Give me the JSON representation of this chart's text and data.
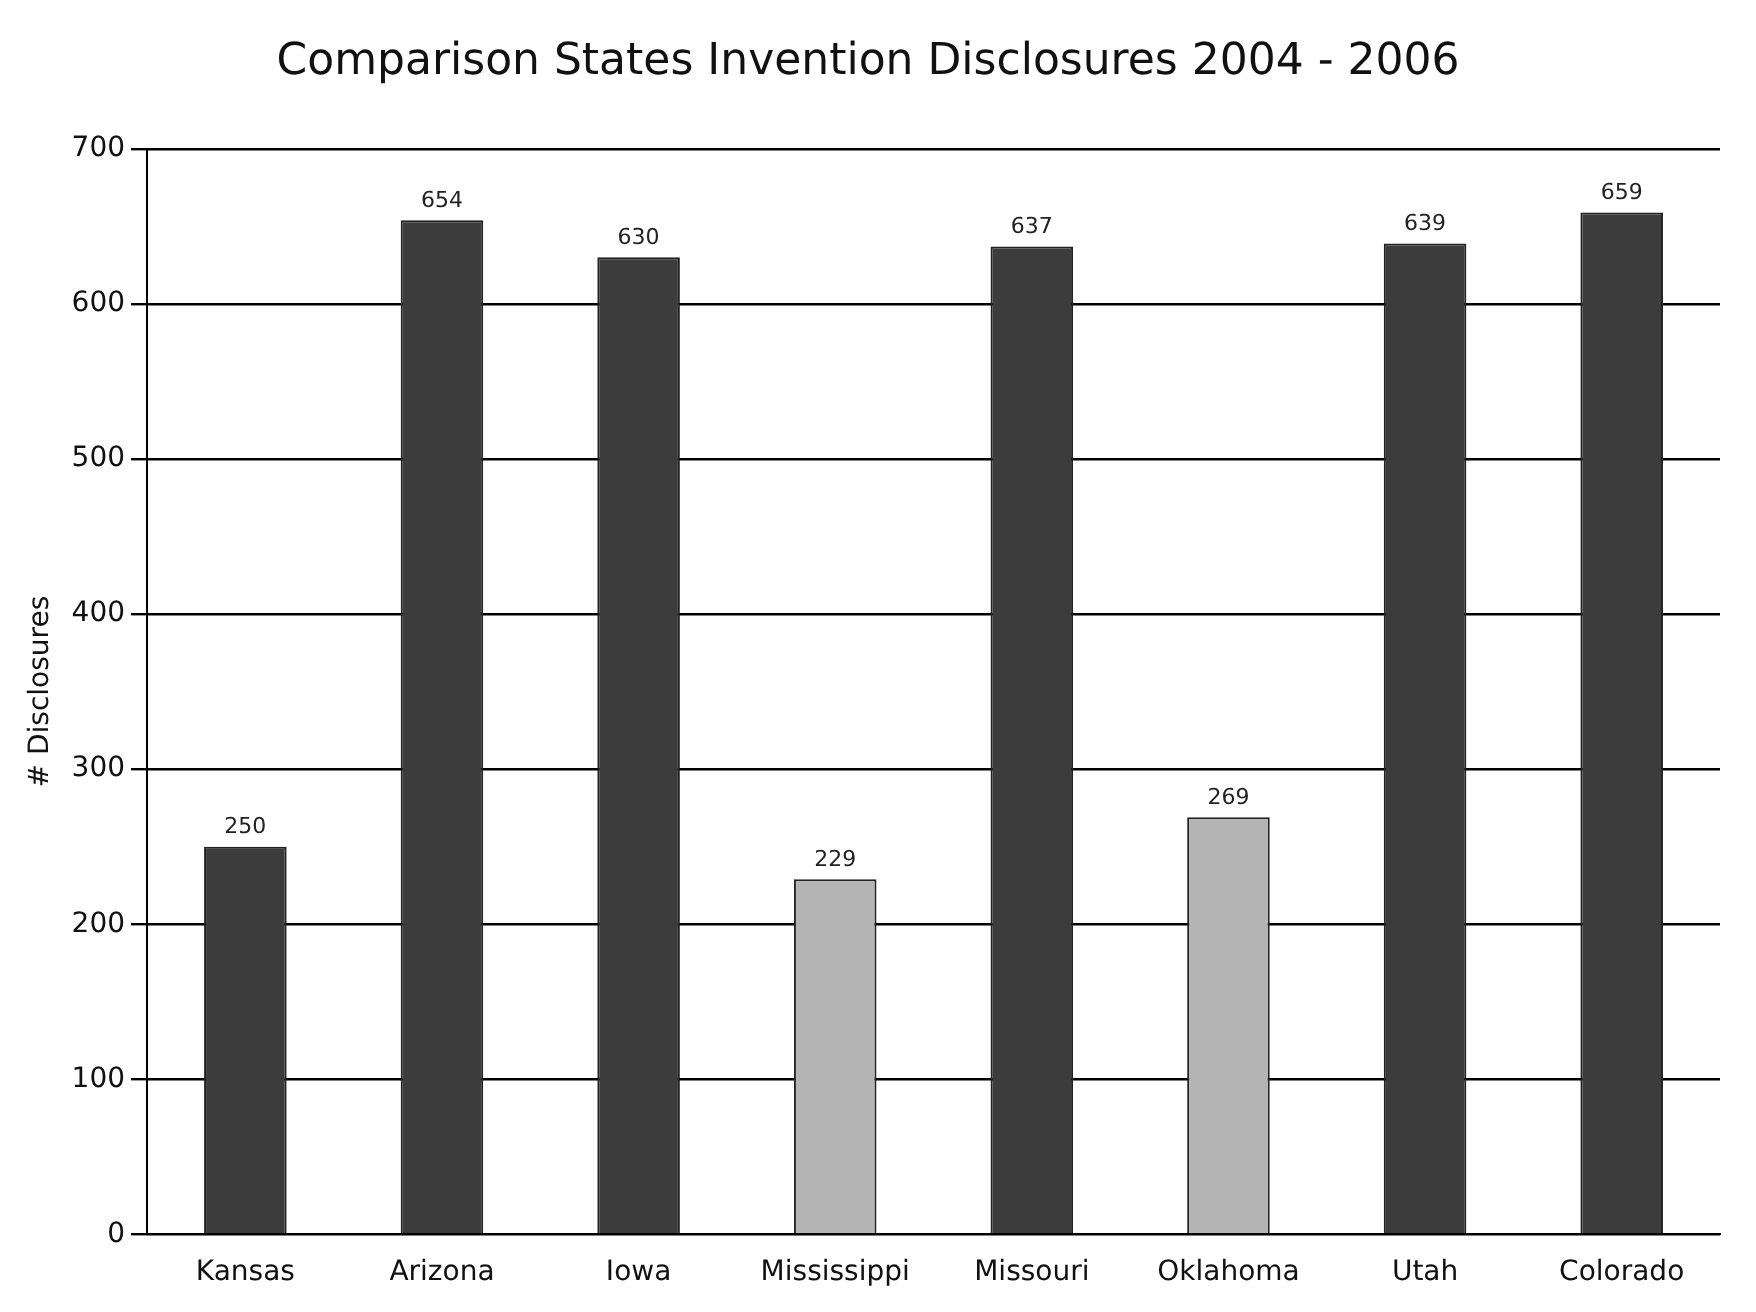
{
  "chart_data": {
    "type": "bar",
    "title": "Comparison States Invention Disclosures 2004 - 2006",
    "ylabel": "# Disclosures",
    "categories": [
      "Kansas",
      "Arizona",
      "Iowa",
      "Mississippi",
      "Missouri",
      "Oklahoma",
      "Utah",
      "Colorado"
    ],
    "values": [
      250,
      654,
      630,
      229,
      637,
      269,
      639,
      659
    ],
    "colors": [
      "#3c3c3c",
      "#3c3c3c",
      "#3c3c3c",
      "#b4b4b4",
      "#3c3c3c",
      "#b4b4b4",
      "#3c3c3c",
      "#3c3c3c"
    ],
    "ylim": [
      0,
      700
    ],
    "yticks": [
      0,
      100,
      200,
      300,
      400,
      500,
      600,
      700
    ],
    "grid": "y",
    "data_labels": true,
    "legend": false
  }
}
